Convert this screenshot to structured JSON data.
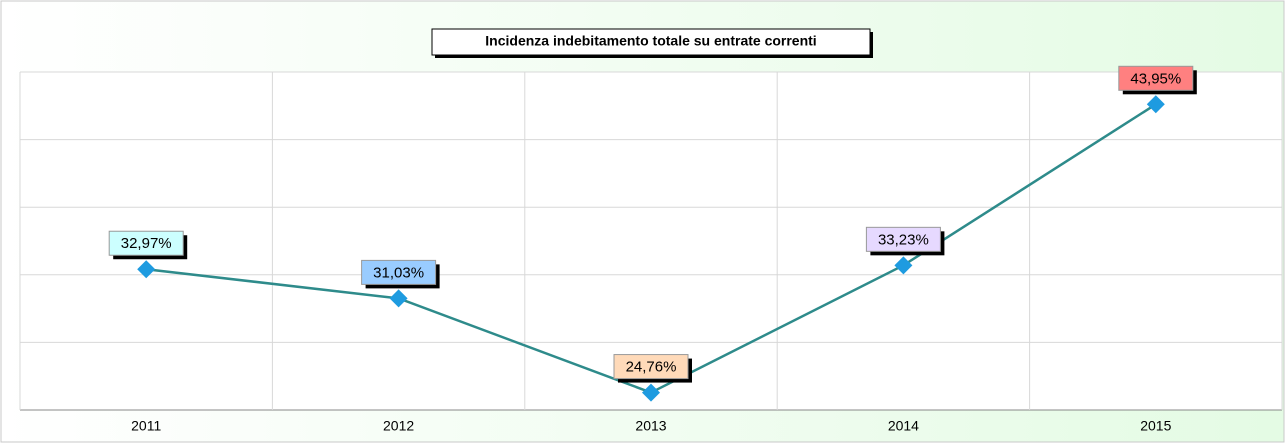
{
  "chart_data": {
    "type": "line",
    "title": "Incidenza indebitamento totale su entrate correnti",
    "categories": [
      "2011",
      "2012",
      "2013",
      "2014",
      "2015"
    ],
    "series": [
      {
        "name": "Incidenza",
        "color": "#2e8b8b",
        "marker_color": "#1e9be0",
        "values": [
          32.97,
          31.03,
          24.76,
          33.23,
          43.95
        ],
        "value_labels": [
          "32,97%",
          "31,03%",
          "24,76%",
          "33,23%",
          "43,95%"
        ],
        "label_colors": [
          "#ccffff",
          "#99ccff",
          "#ffdab9",
          "#e6d9ff",
          "#ff8080"
        ]
      }
    ],
    "ylim": [
      23.6,
      46.1
    ],
    "yticks": [
      23.6,
      28.1,
      32.6,
      37.1,
      41.6,
      46.1
    ],
    "grid": true
  }
}
